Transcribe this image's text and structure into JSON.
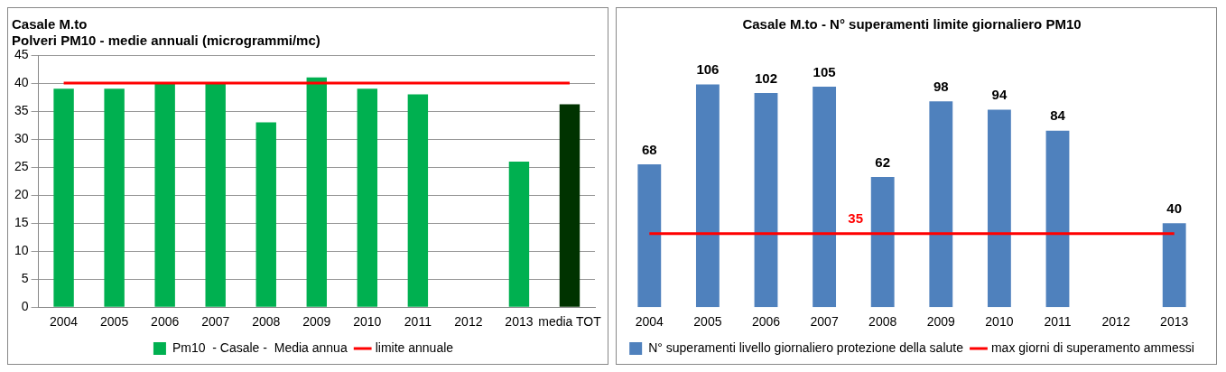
{
  "chart_data": [
    {
      "type": "bar",
      "title": "Casale M.to",
      "subtitle": "Polveri PM10 - medie annuali (microgrammi/mc)",
      "categories": [
        "2004",
        "2005",
        "2006",
        "2007",
        "2008",
        "2009",
        "2010",
        "2011",
        "2012",
        "2013",
        "media TOT"
      ],
      "series": [
        {
          "name": "Pm10  - Casale -  Media annua",
          "color": "#00b050",
          "colors": [
            "#00b050",
            "#00b050",
            "#00b050",
            "#00b050",
            "#00b050",
            "#00b050",
            "#00b050",
            "#00b050",
            "#00b050",
            "#00b050",
            "#003300"
          ],
          "values": [
            39,
            39,
            40,
            40,
            33,
            41,
            39,
            38,
            null,
            26,
            36.2
          ]
        },
        {
          "name": "limite annuale",
          "type": "line",
          "color": "#ff0000",
          "values": [
            40,
            40,
            40,
            40,
            40,
            40,
            40,
            40,
            40,
            40,
            40
          ]
        }
      ],
      "ylim": [
        0,
        45
      ],
      "yticks": [
        0,
        5,
        10,
        15,
        20,
        25,
        30,
        35,
        40,
        45
      ],
      "grid": "y",
      "legend": "bottom",
      "marker": "none"
    },
    {
      "type": "bar",
      "title": "Casale M.to - N° superamenti limite giornaliero PM10",
      "categories": [
        "2004",
        "2005",
        "2006",
        "2007",
        "2008",
        "2009",
        "2010",
        "2011",
        "2012",
        "2013"
      ],
      "series": [
        {
          "name": "N° superamenti livello giornaliero protezione della salute",
          "color": "#4f81bd",
          "values": [
            68,
            106,
            102,
            105,
            62,
            98,
            94,
            84,
            null,
            40
          ],
          "data_labels": true
        },
        {
          "name": "max giorni di superamento ammessi",
          "type": "line",
          "color": "#ff0000",
          "values": [
            35,
            35,
            35,
            35,
            35,
            35,
            35,
            35,
            35,
            35
          ],
          "value_labels": [
            null,
            null,
            null,
            null,
            "35",
            null,
            null,
            null,
            null,
            null
          ]
        }
      ],
      "tick_labels": "x",
      "grid": false,
      "legend": "bottom",
      "marker": "none"
    }
  ]
}
